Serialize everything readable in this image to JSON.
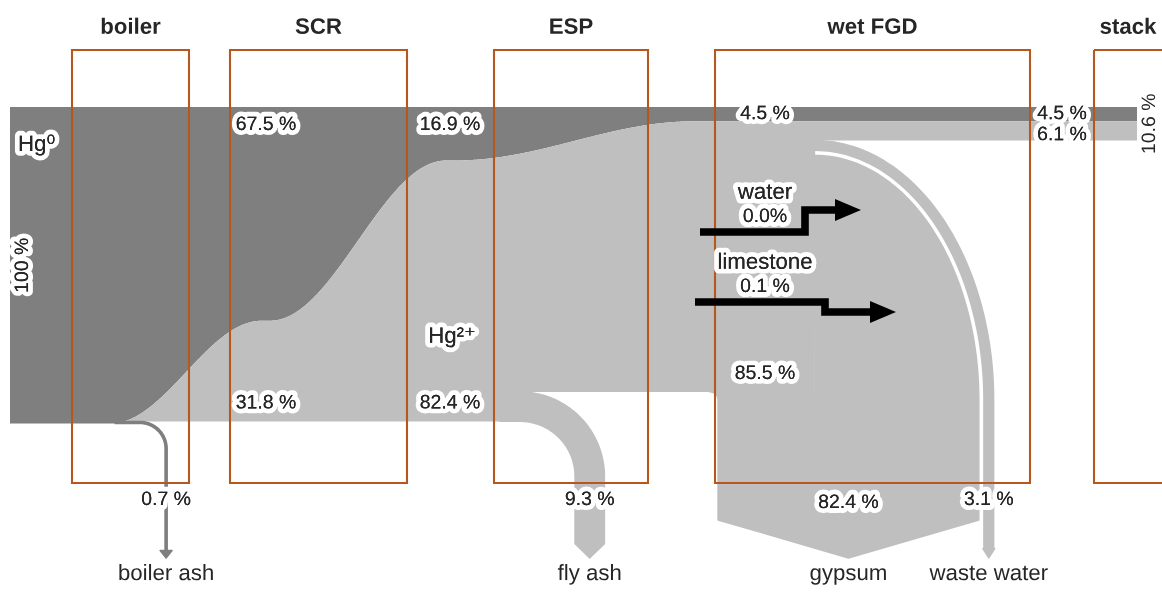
{
  "chart_data": {
    "type": "other",
    "categories": [
      "boiler",
      "SCR",
      "ESP",
      "wet FGD",
      "stack"
    ],
    "series": [
      {
        "name": "Hg⁰",
        "type": "area",
        "color": "#7f7f7f",
        "values": [
          100,
          67.5,
          16.9,
          4.5,
          4.5
        ],
        "value_labels": [
          "100 %",
          "67.5 %",
          "16.9 %",
          "4.5 %",
          "4.5 %"
        ]
      },
      {
        "name": "Hg²⁺",
        "type": "area",
        "color": "#bfbfbf",
        "values": [
          null,
          31.8,
          82.4,
          85.5,
          6.1
        ],
        "value_labels": [
          null,
          "31.8 %",
          "82.4 %",
          "85.5 %",
          "6.1 %"
        ]
      },
      {
        "name": "boiler ash",
        "type": "bar",
        "color": "#7f7f7f",
        "values": [
          0.7,
          null,
          null,
          null,
          null
        ],
        "value_labels": [
          "0.7 %",
          null,
          null,
          null,
          null
        ]
      },
      {
        "name": "fly ash",
        "type": "bar",
        "color": "#bfbfbf",
        "values": [
          null,
          null,
          9.3,
          null,
          null
        ],
        "value_labels": [
          null,
          null,
          "9.3 %",
          null,
          null
        ]
      },
      {
        "name": "gypsum",
        "type": "bar",
        "color": "#bfbfbf",
        "values": [
          null,
          null,
          null,
          82.4,
          null
        ],
        "value_labels": [
          null,
          null,
          null,
          "82.4 %",
          null
        ]
      },
      {
        "name": "waste water",
        "type": "bar",
        "color": "#bfbfbf",
        "values": [
          null,
          null,
          null,
          3.1,
          null
        ],
        "value_labels": [
          null,
          null,
          null,
          "3.1 %",
          null
        ]
      },
      {
        "name": "water",
        "type": "step",
        "color": "#000000",
        "values": [
          null,
          null,
          null,
          0.0,
          null
        ],
        "value_labels": [
          null,
          null,
          null,
          "0.0%",
          null
        ]
      },
      {
        "name": "limestone",
        "type": "step",
        "color": "#000000",
        "values": [
          null,
          null,
          null,
          0.1,
          null
        ],
        "value_labels": [
          null,
          null,
          null,
          "0.1 %",
          null
        ]
      }
    ],
    "totals": [
      null,
      null,
      null,
      null,
      "10.6 %"
    ]
  }
}
